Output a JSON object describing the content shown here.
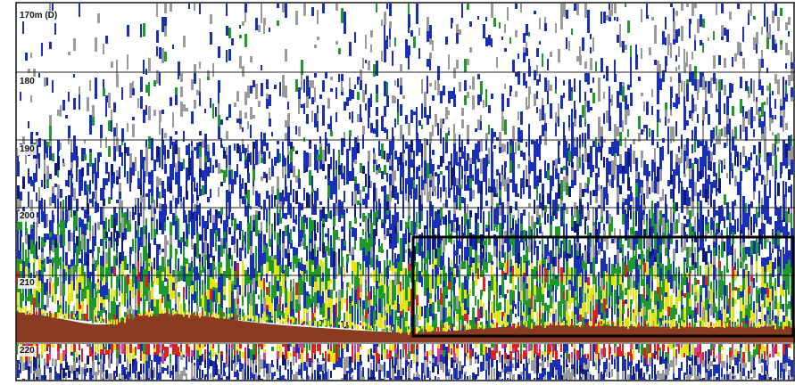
{
  "echogram": {
    "depth_labels": [
      "170m (D)",
      "180",
      "190",
      "200",
      "210",
      "220"
    ],
    "colors": {
      "background": "#ffffff",
      "grey": "#9a9a9a",
      "blue": "#1a2fb8",
      "navy": "#0d1a7a",
      "green": "#1e9a2a",
      "yellow": "#e6e60a",
      "red": "#e0201a",
      "pink": "#d040a0",
      "seabed": "#8a3c22",
      "gridline": "#222222",
      "box": "#000000"
    }
  }
}
